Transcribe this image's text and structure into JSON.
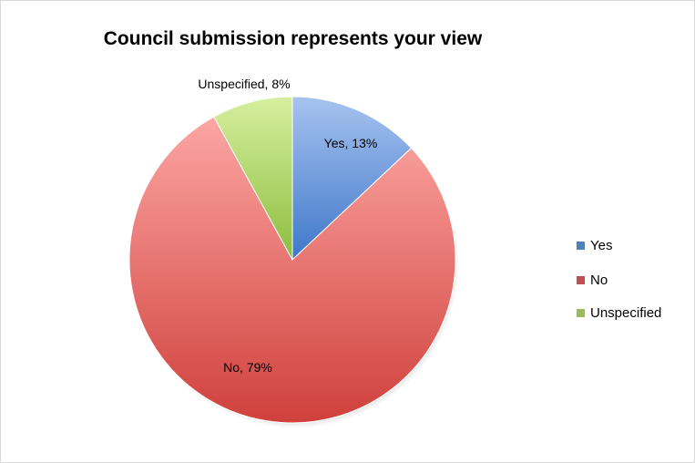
{
  "chart_data": {
    "type": "pie",
    "title": "Council submission represents your view",
    "slices": [
      {
        "label": "Yes",
        "value": 13,
        "data_label": "Yes, 13%",
        "color": "#4f81bd"
      },
      {
        "label": "No",
        "value": 79,
        "data_label": "No, 79%",
        "color": "#c0504d"
      },
      {
        "label": "Unspecified",
        "value": 8,
        "data_label": "Unspecified, 8%",
        "color": "#9bbb59"
      }
    ],
    "legend": {
      "position": "right",
      "entries": [
        "Yes",
        "No",
        "Unspecified"
      ]
    }
  }
}
